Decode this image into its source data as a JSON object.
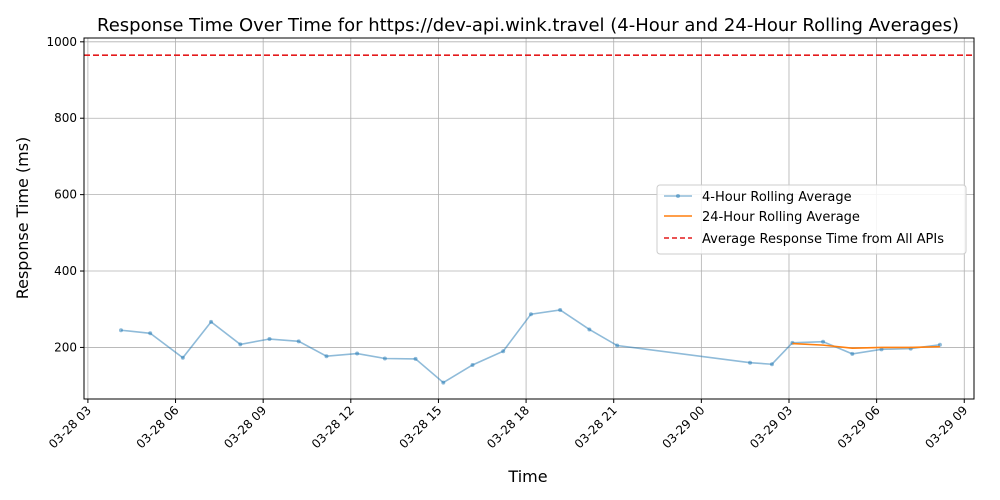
{
  "chart_data": {
    "type": "line",
    "title": "Response Time Over Time for https://dev-api.wink.travel (4-Hour and 24-Hour Rolling Averages)",
    "xlabel": "Time",
    "ylabel": "Response Time (ms)",
    "grid": true,
    "legend_position": "center-right",
    "xlim": [
      "03-28 02:52",
      "03-29 09:20"
    ],
    "ylim": [
      65,
      1010
    ],
    "x_ticks": [
      {
        "label": "03-28 03",
        "hours": 3
      },
      {
        "label": "03-28 06",
        "hours": 6
      },
      {
        "label": "03-28 09",
        "hours": 9
      },
      {
        "label": "03-28 12",
        "hours": 12
      },
      {
        "label": "03-28 15",
        "hours": 15
      },
      {
        "label": "03-28 18",
        "hours": 18
      },
      {
        "label": "03-28 21",
        "hours": 21
      },
      {
        "label": "03-29 00",
        "hours": 24
      },
      {
        "label": "03-29 03",
        "hours": 27
      },
      {
        "label": "03-29 06",
        "hours": 30
      },
      {
        "label": "03-29 09",
        "hours": 33
      }
    ],
    "y_ticks": [
      200,
      400,
      600,
      800,
      1000
    ],
    "series": [
      {
        "name": "4-Hour Rolling Average",
        "color": "#1f77b4",
        "opacity": 0.5,
        "marker": "circle",
        "x": [
          "03-28 04:08",
          "03-28 05:08",
          "03-28 06:15",
          "03-28 07:13",
          "03-28 08:13",
          "03-28 09:13",
          "03-28 10:13",
          "03-28 11:10",
          "03-28 12:13",
          "03-28 13:10",
          "03-28 14:13",
          "03-28 15:10",
          "03-28 16:10",
          "03-28 17:13",
          "03-28 18:10",
          "03-28 19:10",
          "03-28 20:10",
          "03-28 21:07",
          "03-29 01:40",
          "03-29 02:25",
          "03-29 03:07",
          "03-29 04:10",
          "03-29 05:10",
          "03-29 06:10",
          "03-29 07:10",
          "03-29 08:10"
        ],
        "y": [
          245,
          237,
          173,
          267,
          208,
          222,
          216,
          177,
          184,
          171,
          170,
          108,
          154,
          190,
          287,
          298,
          247,
          205,
          160,
          156,
          212,
          215,
          183,
          195,
          197,
          207
        ]
      },
      {
        "name": "24-Hour Rolling Average",
        "color": "#ff7f0e",
        "x": [
          "03-29 03:07",
          "03-29 04:10",
          "03-29 05:10",
          "03-29 06:10",
          "03-29 07:10",
          "03-29 08:10"
        ],
        "y": [
          210,
          206,
          198,
          200,
          200,
          202
        ]
      }
    ],
    "reference_line": {
      "name": "Average Response Time from All APIs",
      "color": "#e41a1c",
      "y": 965,
      "style": "dashed"
    }
  }
}
